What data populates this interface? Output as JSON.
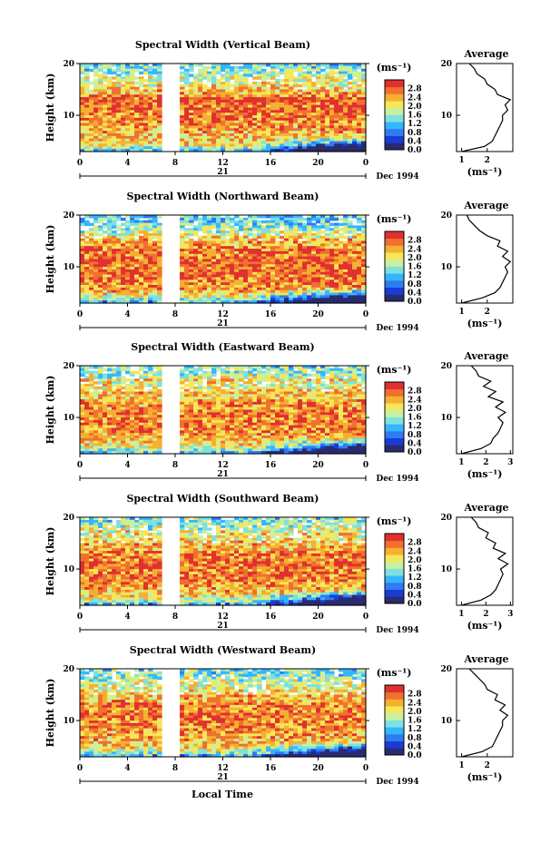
{
  "figure": {
    "bottom_label": "Local Time",
    "colors": [
      "#2a2a6e",
      "#1a3bd6",
      "#2f7bf0",
      "#34b6ff",
      "#7ee0e0",
      "#c8f0a0",
      "#f5e65a",
      "#f5b030",
      "#f07030",
      "#e03030"
    ]
  },
  "chart_data": [
    {
      "type": "heatmap",
      "title": "Spectral Width (Vertical Beam)",
      "ylabel": "Height (km)",
      "y_ticks": [
        "20",
        "10"
      ],
      "y_range": [
        3,
        20
      ],
      "x_ticks": [
        "0",
        "4",
        "8",
        "12",
        "16",
        "20",
        "0"
      ],
      "x_range": [
        0,
        24
      ],
      "date_axis_label": "21",
      "date_right": "Dec 1994",
      "data_gap_hours": [
        6.7,
        8.5
      ],
      "colorbar": {
        "unit": "(ms⁻¹)",
        "ticks": [
          "2.8",
          "2.4",
          "2.0",
          "1.6",
          "1.2",
          "0.8",
          "0.4",
          "0.0"
        ],
        "range": [
          0.0,
          3.2
        ]
      },
      "avg_profile": {
        "title": "Average",
        "xlabel": "(ms⁻¹)",
        "x_ticks": [
          "1",
          "2"
        ],
        "x_range": [
          0.8,
          3.0
        ],
        "y_ticks": [
          "20",
          "10"
        ],
        "height": [
          3,
          4,
          5,
          6,
          7,
          8,
          9,
          10,
          11,
          12,
          13,
          14,
          15,
          16,
          17,
          18,
          19,
          20
        ],
        "value": [
          1.0,
          1.9,
          2.2,
          2.3,
          2.4,
          2.5,
          2.6,
          2.6,
          2.8,
          2.7,
          2.9,
          2.4,
          2.3,
          2.0,
          1.9,
          1.6,
          1.5,
          1.3
        ]
      }
    },
    {
      "type": "heatmap",
      "title": "Spectral Width (Northward Beam)",
      "ylabel": "Height (km)",
      "y_ticks": [
        "20",
        "10"
      ],
      "y_range": [
        3,
        20
      ],
      "x_ticks": [
        "0",
        "4",
        "8",
        "12",
        "16",
        "20",
        "0"
      ],
      "x_range": [
        0,
        24
      ],
      "date_axis_label": "21",
      "date_right": "Dec 1994",
      "data_gap_hours": [
        6.7,
        8.5
      ],
      "colorbar": {
        "unit": "(ms⁻¹)",
        "ticks": [
          "2.8",
          "2.4",
          "2.0",
          "1.6",
          "1.2",
          "0.8",
          "0.4",
          "0.0"
        ],
        "range": [
          0.0,
          3.2
        ]
      },
      "avg_profile": {
        "title": "Average",
        "xlabel": "(ms⁻¹)",
        "x_ticks": [
          "1",
          "2"
        ],
        "x_range": [
          0.8,
          3.0
        ],
        "y_ticks": [
          "20",
          "10"
        ],
        "height": [
          3,
          4,
          5,
          6,
          7,
          8,
          9,
          10,
          11,
          12,
          13,
          14,
          15,
          16,
          17,
          18,
          19,
          20
        ],
        "value": [
          1.0,
          1.8,
          2.3,
          2.5,
          2.6,
          2.7,
          2.8,
          2.7,
          2.9,
          2.6,
          2.8,
          2.4,
          2.5,
          2.0,
          1.7,
          1.5,
          1.3,
          1.2
        ]
      }
    },
    {
      "type": "heatmap",
      "title": "Spectral Width (Eastward Beam)",
      "ylabel": "Height (km)",
      "y_ticks": [
        "20",
        "10"
      ],
      "y_range": [
        3,
        20
      ],
      "x_ticks": [
        "0",
        "4",
        "8",
        "12",
        "16",
        "20",
        "0"
      ],
      "x_range": [
        0,
        24
      ],
      "date_axis_label": "21",
      "date_right": "Dec 1994",
      "data_gap_hours": [
        6.7,
        8.5
      ],
      "colorbar": {
        "unit": "(ms⁻¹)",
        "ticks": [
          "2.8",
          "2.4",
          "2.0",
          "1.6",
          "1.2",
          "0.8",
          "0.4",
          "0.0"
        ],
        "range": [
          0.0,
          3.2
        ]
      },
      "avg_profile": {
        "title": "Average",
        "xlabel": "(ms⁻¹)",
        "x_ticks": [
          "1",
          "2",
          "3"
        ],
        "x_range": [
          0.8,
          3.1
        ],
        "y_ticks": [
          "20",
          "10"
        ],
        "height": [
          3,
          4,
          5,
          6,
          7,
          8,
          9,
          10,
          11,
          12,
          13,
          14,
          15,
          16,
          17,
          18,
          19,
          20
        ],
        "value": [
          1.0,
          1.8,
          2.2,
          2.3,
          2.5,
          2.6,
          2.7,
          2.5,
          2.8,
          2.4,
          2.7,
          2.1,
          2.4,
          1.9,
          2.2,
          1.7,
          1.6,
          1.4
        ]
      }
    },
    {
      "type": "heatmap",
      "title": "Spectral Width (Southward Beam)",
      "ylabel": "Height (km)",
      "y_ticks": [
        "20",
        "10"
      ],
      "y_range": [
        3,
        20
      ],
      "x_ticks": [
        "0",
        "4",
        "8",
        "12",
        "16",
        "20",
        "0"
      ],
      "x_range": [
        0,
        24
      ],
      "date_axis_label": "21",
      "date_right": "Dec 1994",
      "data_gap_hours": [
        6.7,
        8.5
      ],
      "colorbar": {
        "unit": "(ms⁻¹)",
        "ticks": [
          "2.8",
          "2.4",
          "2.0",
          "1.6",
          "1.2",
          "0.8",
          "0.4",
          "0.0"
        ],
        "range": [
          0.0,
          3.2
        ]
      },
      "avg_profile": {
        "title": "Average",
        "xlabel": "(ms⁻¹)",
        "x_ticks": [
          "1",
          "2",
          "3"
        ],
        "x_range": [
          0.8,
          3.1
        ],
        "y_ticks": [
          "20",
          "10"
        ],
        "height": [
          3,
          4,
          5,
          6,
          7,
          8,
          9,
          10,
          11,
          12,
          13,
          14,
          15,
          16,
          17,
          18,
          19,
          20
        ],
        "value": [
          1.0,
          1.8,
          2.2,
          2.4,
          2.5,
          2.6,
          2.7,
          2.6,
          2.9,
          2.5,
          2.8,
          2.3,
          2.4,
          2.0,
          2.1,
          1.7,
          1.6,
          1.4
        ]
      }
    },
    {
      "type": "heatmap",
      "title": "Spectral Width (Westward Beam)",
      "ylabel": "Height (km)",
      "y_ticks": [
        "20",
        "10"
      ],
      "y_range": [
        3,
        20
      ],
      "x_ticks": [
        "0",
        "4",
        "8",
        "12",
        "16",
        "20",
        "0"
      ],
      "x_range": [
        0,
        24
      ],
      "date_axis_label": "21",
      "date_right": "Dec 1994",
      "data_gap_hours": [
        6.7,
        8.5
      ],
      "colorbar": {
        "unit": "(ms⁻¹)",
        "ticks": [
          "2.8",
          "2.4",
          "2.0",
          "1.6",
          "1.2",
          "0.8",
          "0.4",
          "0.0"
        ],
        "range": [
          0.0,
          3.2
        ]
      },
      "avg_profile": {
        "title": "Average",
        "xlabel": "(ms⁻¹)",
        "x_ticks": [
          "1",
          "2"
        ],
        "x_range": [
          0.8,
          3.0
        ],
        "y_ticks": [
          "20",
          "10"
        ],
        "height": [
          3,
          4,
          5,
          6,
          7,
          8,
          9,
          10,
          11,
          12,
          13,
          14,
          15,
          16,
          17,
          18,
          19,
          20
        ],
        "value": [
          1.0,
          1.8,
          2.2,
          2.3,
          2.4,
          2.5,
          2.6,
          2.6,
          2.8,
          2.5,
          2.7,
          2.3,
          2.4,
          2.0,
          1.9,
          1.7,
          1.5,
          1.3
        ]
      }
    }
  ]
}
